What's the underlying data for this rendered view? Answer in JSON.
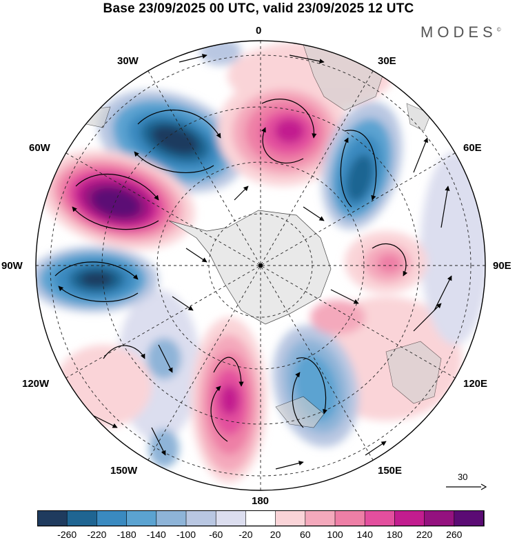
{
  "title": "Base 23/09/2025 00 UTC, valid 23/09/2025 12 UTC",
  "brand": "MODES",
  "brand_mark": "©",
  "longitude_labels": {
    "top": "0",
    "upper_left": "30W",
    "upper_right": "30E",
    "left_upper": "60W",
    "right_upper": "60E",
    "left": "90W",
    "right": "90E",
    "left_lower": "120W",
    "right_lower": "120E",
    "lower_left": "150W",
    "lower_right": "150E",
    "bottom": "180"
  },
  "reference_vector": {
    "value": "30"
  },
  "colorbar": {
    "colors": [
      "#1f3b5e",
      "#1f6592",
      "#3a8ac0",
      "#5ba3d1",
      "#8eb4d8",
      "#b9c7e2",
      "#dcdeef",
      "#ffffff",
      "#fad4d8",
      "#f4a9bc",
      "#ee7fa6",
      "#e34f9e",
      "#c21d8f",
      "#94127f",
      "#5b0b74"
    ],
    "labels": [
      "-260",
      "-220",
      "-180",
      "-140",
      "-100",
      "-60",
      "-20",
      "20",
      "60",
      "100",
      "140",
      "180",
      "220",
      "260"
    ]
  },
  "palette": {
    "land": "#d0d0d0",
    "antarctica": "#e8e8e8",
    "border": "#000000"
  }
}
